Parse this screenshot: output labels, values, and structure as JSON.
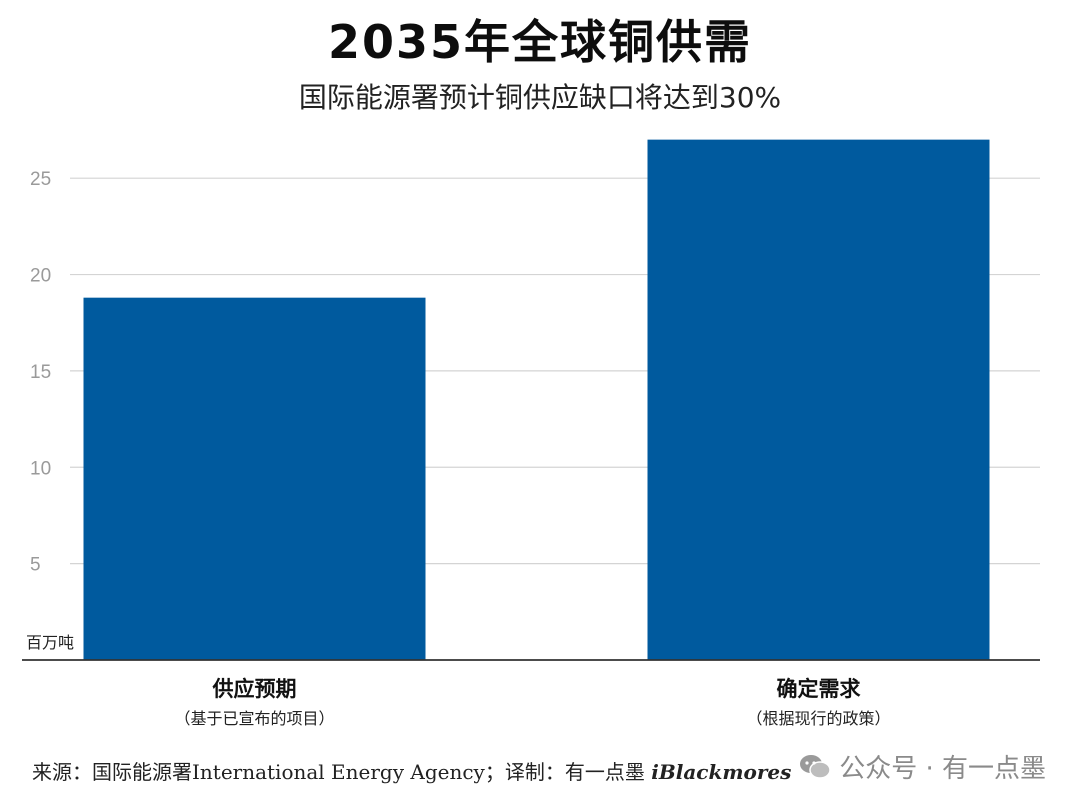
{
  "header": {
    "title": "2035年全球铜供需",
    "subtitle": "国际能源署预计铜供应缺口将达到30%"
  },
  "footer": {
    "source_prefix": "来源：国际能源署International Energy Agency；译制：有一点墨",
    "source_brand": "iBlackmores",
    "watermark_text": "公众号 · 有一点墨"
  },
  "colors": {
    "bar": "#005a9e",
    "grid": "#d4d4d4",
    "axis": "#333333"
  },
  "chart_data": {
    "type": "bar",
    "title": "2035年全球铜供需",
    "subtitle": "国际能源署预计铜供应缺口将达到30%",
    "ylabel": "百万吨",
    "ylim": [
      0,
      27.5
    ],
    "yticks": [
      5,
      10,
      15,
      20,
      25
    ],
    "grid": true,
    "categories": [
      "供应预期",
      "确定需求"
    ],
    "category_notes": [
      "（基于已宣布的项目）",
      "（根据现行的政策）"
    ],
    "values": [
      18.8,
      27.0
    ]
  }
}
